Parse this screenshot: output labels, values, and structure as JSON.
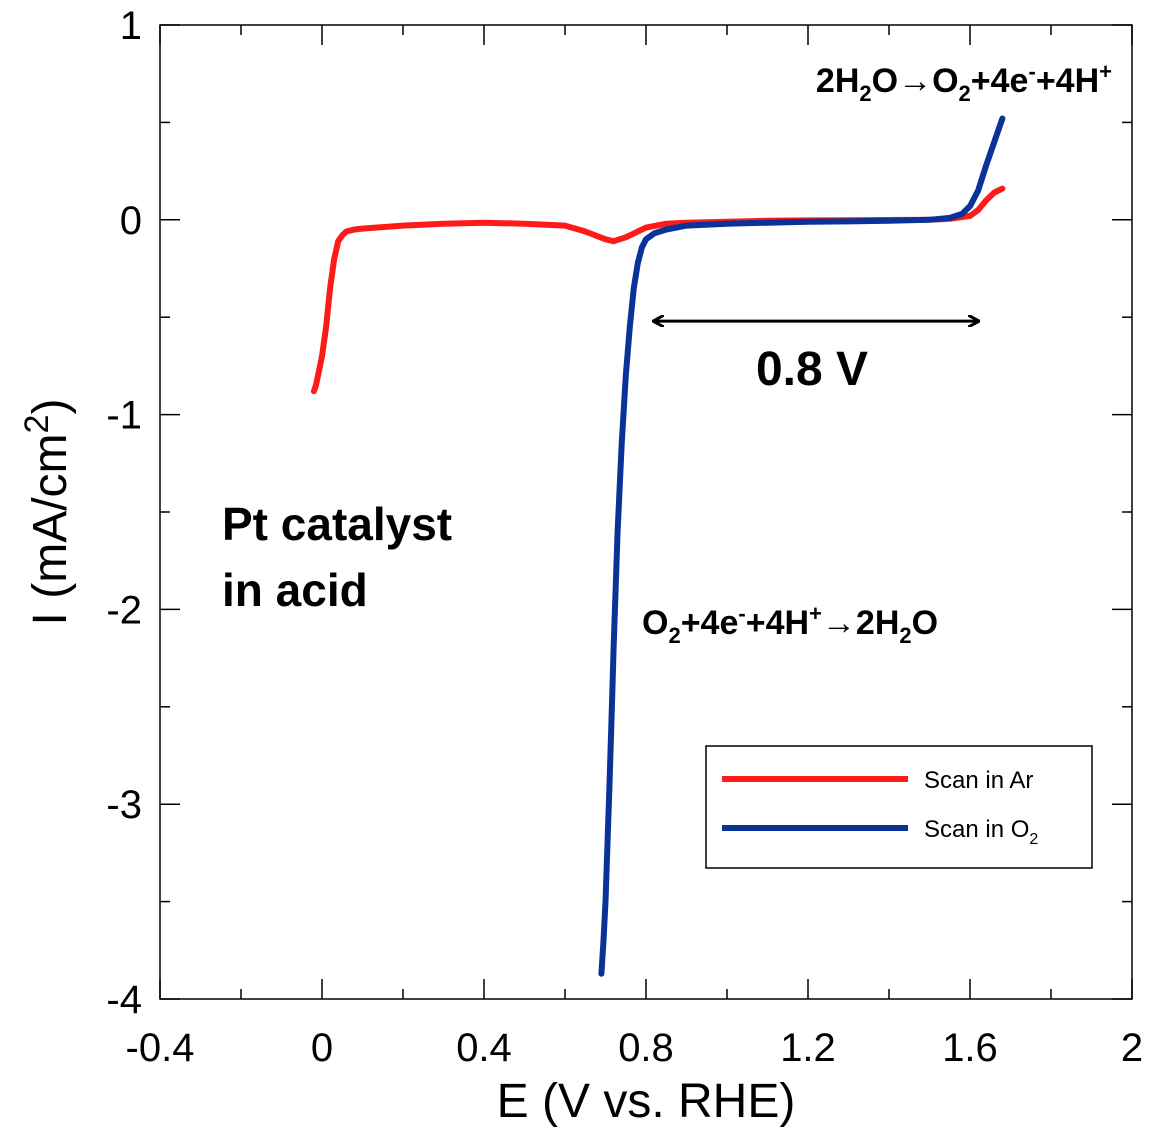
{
  "chart_data": {
    "type": "line",
    "xlabel": "E (V vs. RHE)",
    "ylabel": "I (mA/cm",
    "ylabel_sup": "2",
    "ylabel_close": ")",
    "xlim": [
      -0.4,
      2
    ],
    "ylim": [
      -4,
      1
    ],
    "x_ticks": [
      -0.4,
      0,
      0.4,
      0.8,
      1.2,
      1.6,
      2
    ],
    "x_tick_labels": [
      "-0.4",
      "0",
      "0.4",
      "0.8",
      "1.2",
      "1.6",
      "2"
    ],
    "y_ticks": [
      -4,
      -3,
      -2,
      -1,
      0,
      1
    ],
    "y_tick_labels": [
      "-4",
      "-3",
      "-2",
      "-1",
      "0",
      "1"
    ],
    "grid": false,
    "legend_position": "bottom-right",
    "series": [
      {
        "name": "Scan in Ar",
        "color": "#ff1a1a",
        "x": [
          -0.02,
          -0.015,
          -0.01,
          0.0,
          0.01,
          0.02,
          0.03,
          0.04,
          0.05,
          0.06,
          0.08,
          0.1,
          0.2,
          0.3,
          0.4,
          0.5,
          0.6,
          0.65,
          0.7,
          0.72,
          0.75,
          0.8,
          0.85,
          0.9,
          1.0,
          1.1,
          1.2,
          1.3,
          1.4,
          1.5,
          1.55,
          1.6,
          1.62,
          1.64,
          1.66,
          1.68
        ],
        "y": [
          -0.88,
          -0.85,
          -0.8,
          -0.7,
          -0.55,
          -0.35,
          -0.2,
          -0.11,
          -0.08,
          -0.06,
          -0.05,
          -0.045,
          -0.03,
          -0.02,
          -0.015,
          -0.02,
          -0.03,
          -0.06,
          -0.1,
          -0.11,
          -0.09,
          -0.04,
          -0.02,
          -0.015,
          -0.01,
          -0.005,
          -0.003,
          -0.002,
          -0.001,
          0.0,
          0.005,
          0.02,
          0.05,
          0.1,
          0.14,
          0.16
        ]
      },
      {
        "name": "Scan in O",
        "name_sub": "2",
        "color": "#0a3399",
        "x": [
          0.69,
          0.695,
          0.7,
          0.705,
          0.71,
          0.715,
          0.72,
          0.725,
          0.73,
          0.74,
          0.75,
          0.76,
          0.77,
          0.78,
          0.79,
          0.8,
          0.82,
          0.85,
          0.9,
          1.0,
          1.1,
          1.2,
          1.3,
          1.4,
          1.5,
          1.55,
          1.58,
          1.6,
          1.62,
          1.64,
          1.66,
          1.68
        ],
        "y": [
          -3.87,
          -3.7,
          -3.5,
          -3.2,
          -2.9,
          -2.55,
          -2.2,
          -1.9,
          -1.6,
          -1.15,
          -0.8,
          -0.55,
          -0.35,
          -0.22,
          -0.14,
          -0.1,
          -0.07,
          -0.05,
          -0.03,
          -0.02,
          -0.015,
          -0.01,
          -0.008,
          -0.005,
          0.0,
          0.01,
          0.03,
          0.07,
          0.15,
          0.28,
          0.4,
          0.52
        ]
      }
    ],
    "annotations": {
      "oer": {
        "p1": "2H",
        "s1": "2",
        "p2": "O→O",
        "s2": "2",
        "p3": "+4e",
        "sup1": "-",
        "p4": "+4H",
        "sup2": "+"
      },
      "orr": {
        "p1": "O",
        "s1": "2",
        "p2": "+4e",
        "sup1": "-",
        "p3": "+4H",
        "sup2": "+",
        "p4": "→2H",
        "s2": "2",
        "p5": "O"
      },
      "gap": "0.8 V",
      "gap_range": [
        0.82,
        1.62
      ],
      "gap_y": -0.52,
      "catalyst_line1": "Pt catalyst",
      "catalyst_line2": "in acid"
    }
  }
}
